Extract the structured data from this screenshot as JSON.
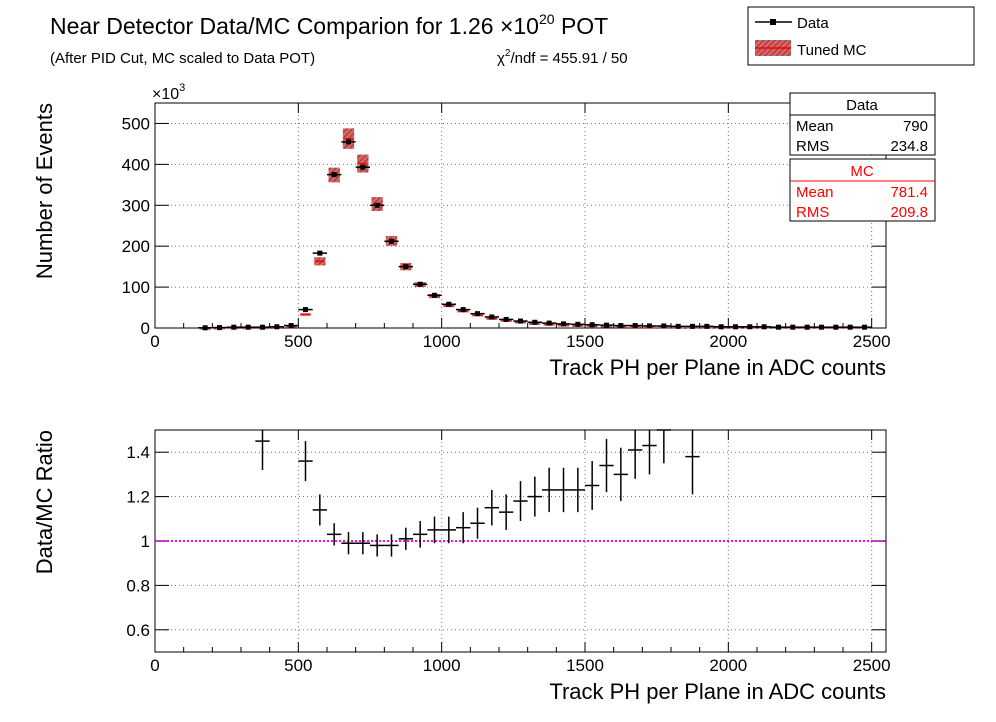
{
  "header": {
    "title_main": "Near Detector Data/MC Comparion for 1.26 ×10",
    "title_exp": "20",
    "title_tail": " POT",
    "subtitle": "(After PID Cut, MC scaled to Data POT)",
    "chi2_symbol": "χ",
    "chi2_exp": "2",
    "chi2_tail": "/ndf = 455.91 / 50"
  },
  "legend": {
    "position": "top-right",
    "entries": [
      {
        "label": "Data",
        "marker": "black-point-line"
      },
      {
        "label": "Tuned MC",
        "marker": "red-hatched-box"
      }
    ]
  },
  "stats": [
    {
      "title": "Data",
      "color": "#000000",
      "rows": [
        {
          "key": "Mean",
          "val": "790"
        },
        {
          "key": "RMS",
          "val": "234.8"
        }
      ]
    },
    {
      "title": "MC",
      "color": "#ff0000",
      "rows": [
        {
          "key": "Mean",
          "val": "781.4"
        },
        {
          "key": "RMS",
          "val": "209.8"
        }
      ]
    }
  ],
  "colors": {
    "data": "#000000",
    "mc_fill": "#c85050",
    "mc_marker": "#ff0000",
    "reference": "#ff00ff"
  },
  "chart_data": [
    {
      "type": "histogram",
      "xlabel": "Track PH per Plane in ADC counts",
      "ylabel": "Number of Events",
      "y_multiplier": "×10",
      "y_multiplier_exp": "3",
      "xlim": [
        0,
        2550
      ],
      "ylim": [
        0,
        550
      ],
      "xticks": [
        0,
        500,
        1000,
        1500,
        2000,
        2500
      ],
      "yticks": [
        0,
        100,
        200,
        300,
        400,
        500
      ],
      "grid": true,
      "bin_width": 50,
      "series": [
        {
          "name": "Data",
          "x": [
            175,
            225,
            275,
            325,
            375,
            425,
            475,
            525,
            575,
            625,
            675,
            725,
            775,
            825,
            875,
            925,
            975,
            1025,
            1075,
            1125,
            1175,
            1225,
            1275,
            1325,
            1375,
            1425,
            1475,
            1525,
            1575,
            1625,
            1675,
            1725,
            1775,
            1825,
            1875,
            1925,
            1975,
            2025,
            2075,
            2125,
            2175,
            2225,
            2275,
            2325,
            2375,
            2425,
            2475
          ],
          "y": [
            0.5,
            1,
            2,
            2,
            2,
            3,
            6,
            45,
            183,
            375,
            455,
            393,
            300,
            212,
            150,
            107,
            80,
            58,
            45,
            35,
            27,
            21,
            17,
            14,
            12,
            10,
            9,
            8,
            7,
            6,
            6,
            5,
            5,
            4,
            4,
            4,
            3,
            3,
            3,
            3,
            2,
            2,
            2,
            2,
            2,
            2,
            2
          ]
        },
        {
          "name": "Tuned MC",
          "x": [
            175,
            225,
            275,
            325,
            375,
            425,
            475,
            525,
            575,
            625,
            675,
            725,
            775,
            825,
            875,
            925,
            975,
            1025,
            1075,
            1125,
            1175,
            1225,
            1275,
            1325,
            1375,
            1425,
            1475,
            1525,
            1575,
            1625,
            1675,
            1725,
            1775,
            1825,
            1875,
            1925,
            1975,
            2025,
            2075,
            2125,
            2175,
            2225,
            2275,
            2325,
            2375,
            2425,
            2475
          ],
          "y": [
            0.5,
            1,
            1.5,
            1.5,
            1.5,
            2,
            4,
            33,
            163,
            374,
            463,
            402,
            303,
            213,
            150,
            106,
            78,
            55,
            41,
            31,
            23,
            18,
            14,
            11,
            9,
            7.5,
            6.5,
            6,
            5,
            4.5,
            4,
            3.5,
            3.5,
            3,
            3,
            3,
            2.5,
            2.5,
            2.5,
            2.5,
            2,
            2,
            2,
            2,
            2,
            2,
            2
          ],
          "err": [
            0.2,
            0.3,
            0.5,
            0.5,
            0.5,
            0.6,
            1.5,
            3,
            10,
            18,
            25,
            22,
            17,
            12,
            9,
            6,
            5,
            4,
            3,
            2.5,
            2,
            2,
            2,
            1.5,
            1.5,
            1,
            1,
            1,
            1,
            1,
            1,
            1,
            1,
            1,
            1,
            1,
            1,
            1,
            1,
            1,
            1,
            1,
            1,
            1,
            1,
            1,
            1
          ]
        }
      ]
    },
    {
      "type": "scatter",
      "xlabel": "Track PH per Plane in ADC counts",
      "ylabel": "Data/MC Ratio",
      "xlim": [
        0,
        2550
      ],
      "ylim": [
        0.5,
        1.5
      ],
      "xticks": [
        0,
        500,
        1000,
        1500,
        2000,
        2500
      ],
      "yticks": [
        0.6,
        0.8,
        1,
        1.2,
        1.4
      ],
      "ytick_labels": [
        "0.6",
        "0.8",
        "1",
        "1.2",
        "1.4"
      ],
      "grid": true,
      "reference_line": 1,
      "series": [
        {
          "name": "Data/MC Ratio",
          "x": [
            375,
            525,
            575,
            625,
            675,
            725,
            775,
            825,
            875,
            925,
            975,
            1025,
            1075,
            1125,
            1175,
            1225,
            1275,
            1325,
            1375,
            1425,
            1475,
            1525,
            1575,
            1625,
            1675,
            1725,
            1775,
            1875
          ],
          "y": [
            1.45,
            1.36,
            1.14,
            1.03,
            0.99,
            0.99,
            0.98,
            0.98,
            1.01,
            1.03,
            1.05,
            1.05,
            1.06,
            1.08,
            1.15,
            1.13,
            1.18,
            1.2,
            1.23,
            1.23,
            1.23,
            1.25,
            1.34,
            1.3,
            1.41,
            1.43,
            1.5,
            1.38
          ],
          "err": [
            0.13,
            0.09,
            0.07,
            0.05,
            0.05,
            0.05,
            0.05,
            0.05,
            0.05,
            0.06,
            0.06,
            0.06,
            0.07,
            0.07,
            0.08,
            0.08,
            0.09,
            0.09,
            0.1,
            0.1,
            0.1,
            0.11,
            0.12,
            0.12,
            0.13,
            0.13,
            0.15,
            0.17
          ]
        }
      ]
    }
  ]
}
